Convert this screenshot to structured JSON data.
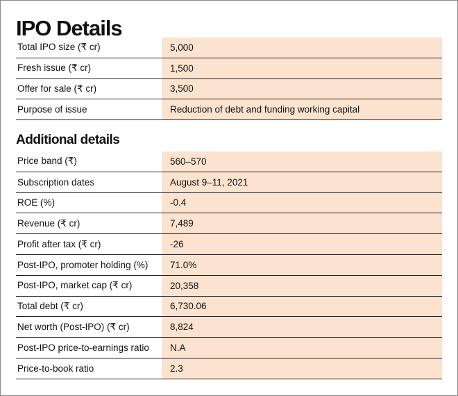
{
  "title": "IPO Details",
  "table": {
    "rows": [
      [
        "Total IPO size (₹ cr)",
        "5,000"
      ],
      [
        "Fresh issue (₹ cr)",
        "1,500"
      ],
      [
        "Offer for sale (₹ cr)",
        "3,500"
      ],
      [
        "Purpose of issue",
        "Reduction of debt and funding working capital"
      ]
    ]
  },
  "additional": {
    "title": "Additional details",
    "rows": [
      [
        "Price band (₹)",
        "560–570"
      ],
      [
        "Subscription dates",
        "August 9–11, 2021"
      ],
      [
        "ROE (%)",
        "-0.4"
      ],
      [
        "Revenue (₹ cr)",
        "7,489"
      ],
      [
        "Profit after tax (₹ cr)",
        "-26"
      ],
      [
        "Post-IPO, promoter holding (%)",
        "71.0%"
      ],
      [
        "Post-IPO, market cap  (₹ cr)",
        "20,358"
      ],
      [
        "Total debt (₹ cr)",
        "6,730.06"
      ],
      [
        "Net worth  (Post-IPO) (₹ cr)",
        "8,824"
      ],
      [
        "Post-IPO price-to-earnings ratio",
        "N.A"
      ],
      [
        "Price-to-book ratio",
        "2.3"
      ]
    ]
  }
}
